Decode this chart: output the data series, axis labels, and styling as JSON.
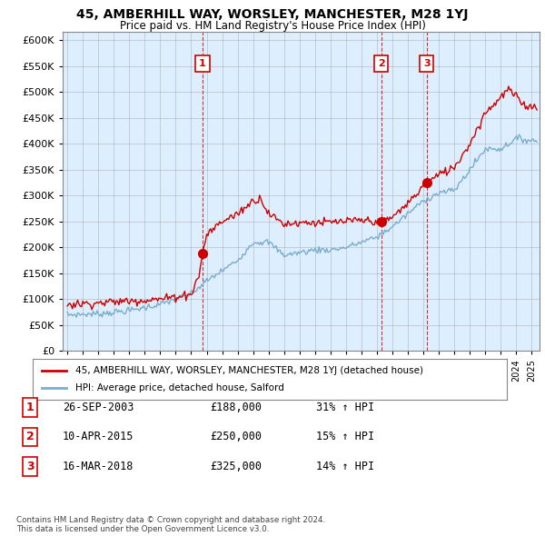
{
  "title": "45, AMBERHILL WAY, WORSLEY, MANCHESTER, M28 1YJ",
  "subtitle": "Price paid vs. HM Land Registry's House Price Index (HPI)",
  "legend_line1": "45, AMBERHILL WAY, WORSLEY, MANCHESTER, M28 1YJ (detached house)",
  "legend_line2": "HPI: Average price, detached house, Salford",
  "ylim": [
    0,
    620000
  ],
  "xlim_start": 1994.7,
  "xlim_end": 2025.5,
  "sale1_date": "26-SEP-2003",
  "sale1_price": "£188,000",
  "sale1_pct": "31% ↑ HPI",
  "sale1_x": 2003.73,
  "sale1_y": 188000,
  "sale2_date": "10-APR-2015",
  "sale2_price": "£250,000",
  "sale2_pct": "15% ↑ HPI",
  "sale2_x": 2015.27,
  "sale2_y": 250000,
  "sale3_date": "16-MAR-2018",
  "sale3_price": "£325,000",
  "sale3_pct": "14% ↑ HPI",
  "sale3_x": 2018.21,
  "sale3_y": 325000,
  "footer1": "Contains HM Land Registry data © Crown copyright and database right 2024.",
  "footer2": "This data is licensed under the Open Government Licence v3.0.",
  "red_color": "#cc0000",
  "blue_color": "#7aadcc",
  "plot_bg_color": "#ddeeff",
  "background_color": "#ffffff",
  "grid_color": "#aaaaaa"
}
